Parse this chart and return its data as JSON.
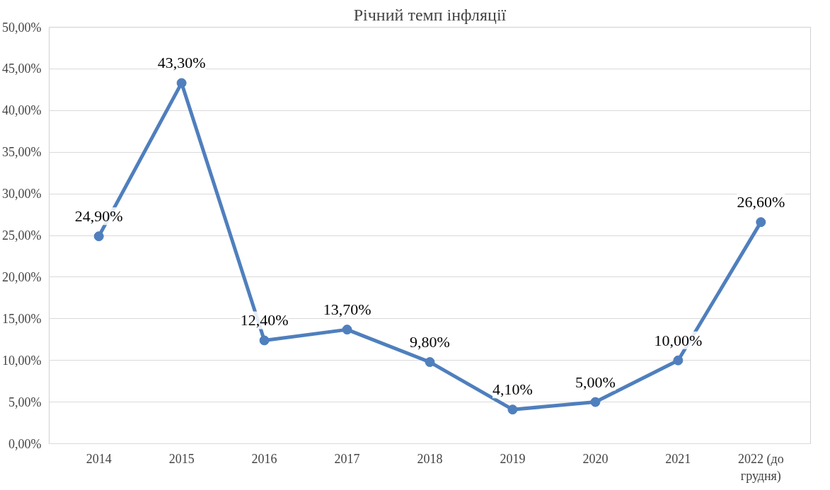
{
  "chart_data": {
    "type": "line",
    "title": "Річний темп інфляції",
    "categories": [
      "2014",
      "2015",
      "2016",
      "2017",
      "2018",
      "2019",
      "2020",
      "2021",
      "2022 (до грудня)"
    ],
    "series": [
      {
        "color": "#4f7fbd",
        "values": [
          24.9,
          43.3,
          12.4,
          13.7,
          9.8,
          4.1,
          5.0,
          10.0,
          26.6
        ],
        "value_labels": [
          "24,90%",
          "43,30%",
          "12,40%",
          "13,70%",
          "9,80%",
          "4,10%",
          "5,00%",
          "10,00%",
          "26,60%"
        ]
      }
    ],
    "ylim": [
      0,
      50
    ],
    "yticks": [
      {
        "value": 0,
        "label": "0,00%"
      },
      {
        "value": 5,
        "label": "5,00%"
      },
      {
        "value": 10,
        "label": "10,00%"
      },
      {
        "value": 15,
        "label": "15,00%"
      },
      {
        "value": 20,
        "label": "20,00%"
      },
      {
        "value": 25,
        "label": "25,00%"
      },
      {
        "value": 30,
        "label": "30,00%"
      },
      {
        "value": 35,
        "label": "35,00%"
      },
      {
        "value": 40,
        "label": "40,00%"
      },
      {
        "value": 45,
        "label": "45,00%"
      },
      {
        "value": 50,
        "label": "50,00%"
      }
    ],
    "grid": "y",
    "marker": "circle",
    "line_style": "solid"
  }
}
